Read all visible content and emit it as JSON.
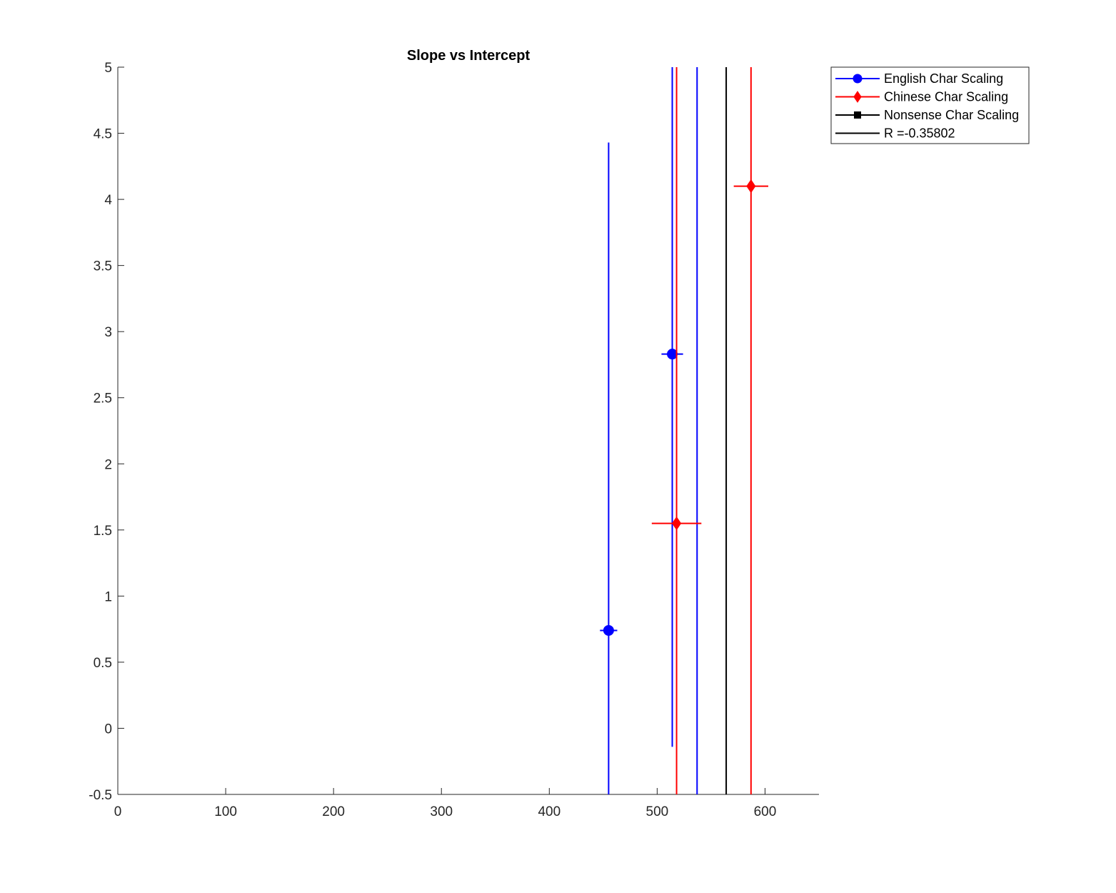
{
  "chart_data": {
    "type": "scatter",
    "title": "Slope vs Intercept",
    "xlabel": "",
    "ylabel": "",
    "xlim": [
      0,
      650
    ],
    "ylim": [
      -0.5,
      5
    ],
    "x_ticks": [
      "0",
      "100",
      "200",
      "300",
      "400",
      "500",
      "600"
    ],
    "y_ticks": [
      "-0.5",
      "0",
      "0.5",
      "1",
      "1.5",
      "2",
      "2.5",
      "3",
      "3.5",
      "4",
      "4.5",
      "5"
    ],
    "grid": false,
    "legend_position": "outside top-right",
    "series": [
      {
        "name": "English Char Scaling",
        "color": "#0000ff",
        "marker": "circle",
        "points": [
          {
            "x": 455,
            "y": 0.74,
            "xerr": 8,
            "yerr_low": 1.24,
            "yerr_high": 3.69
          },
          {
            "x": 514,
            "y": 2.83,
            "xerr": 10,
            "yerr_low": 2.97,
            "yerr_high": 2.17
          }
        ],
        "vlines": [
          537
        ]
      },
      {
        "name": "Chinese Char Scaling",
        "color": "#ff0000",
        "marker": "diamond",
        "points": [
          {
            "x": 518,
            "y": 1.55,
            "xerr": 23,
            "yerr_low": 2.05,
            "yerr_high": 3.45
          },
          {
            "x": 587,
            "y": 4.1,
            "xerr": 16,
            "yerr_low": 4.6,
            "yerr_high": 0.9
          }
        ]
      },
      {
        "name": "Nonsense Char Scaling",
        "color": "#000000",
        "marker": "square",
        "points": []
      },
      {
        "name": "R =-0.35802",
        "color": "#000000",
        "marker": "none",
        "vlines": [
          564
        ]
      }
    ]
  }
}
